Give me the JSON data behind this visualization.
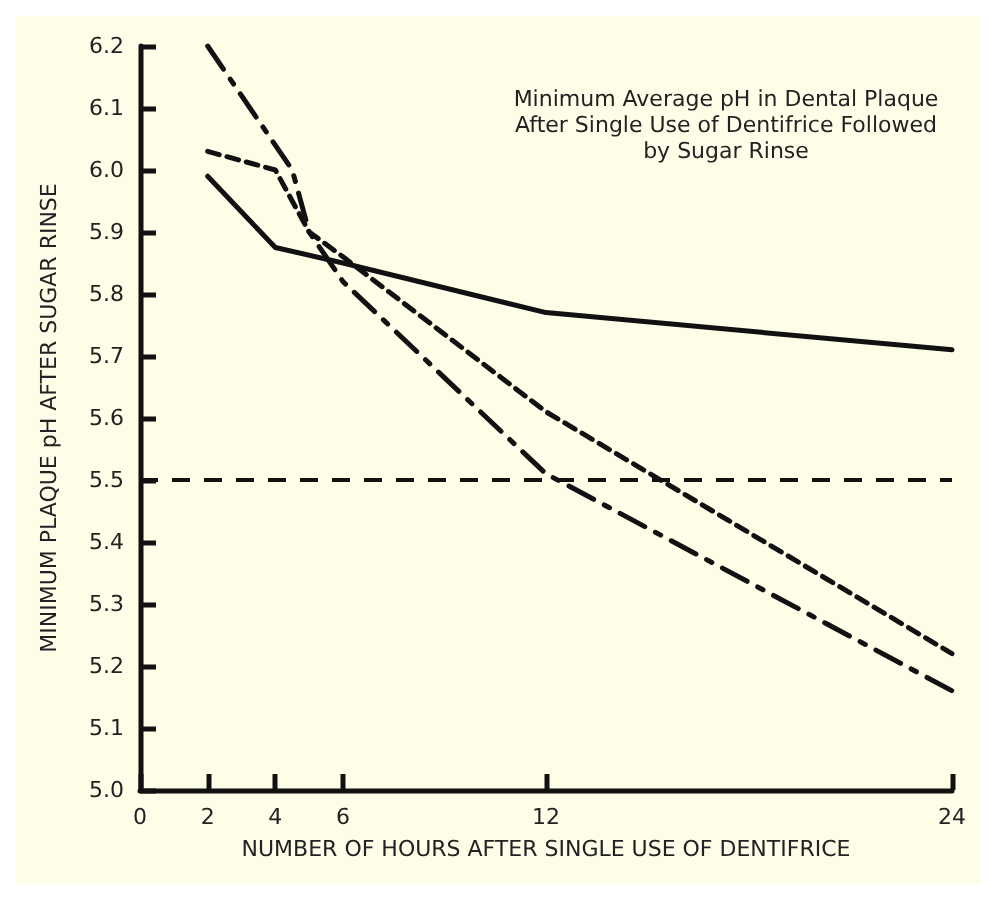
{
  "chart_data": {
    "type": "line",
    "title": "Minimum Average pH in Dental Plaque\nAfter Single Use of Dentifrice Followed\nby Sugar Rinse",
    "xlabel": "NUMBER OF HOURS AFTER SINGLE USE OF DENTIFRICE",
    "ylabel": "MINIMUM PLAQUE pH AFTER SUGAR RINSE",
    "xlim": [
      0,
      24
    ],
    "xticks": [
      0,
      2,
      4,
      6,
      12,
      24
    ],
    "ylim": [
      5.0,
      6.2
    ],
    "yticks": [
      {
        "value": 5.0,
        "label": "5.0"
      },
      {
        "value": 5.1,
        "label": "5.1"
      },
      {
        "value": 5.2,
        "label": "5.2"
      },
      {
        "value": 5.3,
        "label": "5.3"
      },
      {
        "value": 5.4,
        "label": "5.4"
      },
      {
        "value": 5.5,
        "label": "5.5"
      },
      {
        "value": 5.6,
        "label": "5.6"
      },
      {
        "value": 5.7,
        "label": "5.7"
      },
      {
        "value": 5.8,
        "label": "5.8"
      },
      {
        "value": 5.9,
        "label": "5.9"
      },
      {
        "value": 6.0,
        "label": "6.0"
      },
      {
        "value": 6.1,
        "label": "6.1"
      },
      {
        "value": 6.2,
        "label": "6.2"
      }
    ],
    "grid": false,
    "marker": "none",
    "series": [
      {
        "color": "#111111",
        "line_style": "solid",
        "x": [
          2,
          4,
          6,
          12,
          24
        ],
        "values": [
          5.99,
          5.875,
          5.85,
          5.77,
          5.71
        ]
      },
      {
        "color": "#111111",
        "line_style": "dotted",
        "x": [
          2,
          4,
          5,
          6,
          12,
          24
        ],
        "values": [
          6.03,
          6.0,
          5.9,
          5.86,
          5.61,
          5.22
        ]
      },
      {
        "color": "#111111",
        "line_style": "dashed",
        "x": [
          2,
          4.5,
          5,
          6,
          12,
          24
        ],
        "values": [
          6.2,
          6.0,
          5.9,
          5.82,
          5.51,
          5.16
        ]
      }
    ],
    "ref_lines": [
      {
        "axis": "y",
        "value": 5.5,
        "color": "#111111",
        "line_style": "dashed"
      }
    ]
  }
}
